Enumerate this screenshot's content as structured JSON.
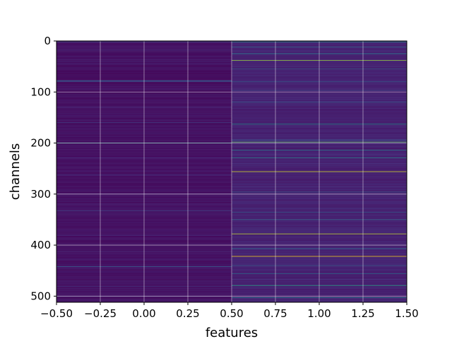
{
  "chart_data": {
    "type": "heatmap",
    "title": "",
    "xlabel": "features",
    "ylabel": "channels",
    "xlim": [
      -0.5,
      1.5
    ],
    "ylim": [
      512,
      0
    ],
    "n_rows": 512,
    "n_cols": 2,
    "x_ticks": [
      "−0.50",
      "−0.25",
      "0.00",
      "0.25",
      "0.50",
      "0.75",
      "1.00",
      "1.25",
      "1.50"
    ],
    "x_tick_values": [
      -0.5,
      -0.25,
      0.0,
      0.25,
      0.5,
      0.75,
      1.0,
      1.25,
      1.5
    ],
    "y_ticks": [
      "0",
      "100",
      "200",
      "300",
      "400",
      "500"
    ],
    "y_tick_values": [
      0,
      100,
      200,
      300,
      400,
      500
    ],
    "grid": true,
    "colormap": "viridis",
    "colorbar": false,
    "columns": [
      {
        "x": 0,
        "base_value": 0.05,
        "highlights": [
          {
            "row": 2,
            "value": 0.22
          },
          {
            "row": 18,
            "value": 0.15
          },
          {
            "row": 45,
            "value": 0.12
          },
          {
            "row": 78,
            "value": 0.32
          },
          {
            "row": 79,
            "value": 0.25
          },
          {
            "row": 130,
            "value": 0.14
          },
          {
            "row": 160,
            "value": 0.18
          },
          {
            "row": 200,
            "value": 0.55
          },
          {
            "row": 229,
            "value": 0.12
          },
          {
            "row": 262,
            "value": 0.14
          },
          {
            "row": 300,
            "value": 0.13
          },
          {
            "row": 333,
            "value": 0.22
          },
          {
            "row": 381,
            "value": 0.14
          },
          {
            "row": 412,
            "value": 0.12
          },
          {
            "row": 442,
            "value": 0.3
          },
          {
            "row": 481,
            "value": 0.16
          },
          {
            "row": 500,
            "value": 0.13
          }
        ]
      },
      {
        "x": 1,
        "base_value": 0.1,
        "highlights": [
          {
            "row": 2,
            "value": 0.5
          },
          {
            "row": 12,
            "value": 0.35
          },
          {
            "row": 25,
            "value": 0.45
          },
          {
            "row": 38,
            "value": 0.85
          },
          {
            "row": 55,
            "value": 0.3
          },
          {
            "row": 80,
            "value": 0.32
          },
          {
            "row": 97,
            "value": 0.25
          },
          {
            "row": 120,
            "value": 0.3
          },
          {
            "row": 163,
            "value": 0.5
          },
          {
            "row": 194,
            "value": 0.3
          },
          {
            "row": 198,
            "value": 0.75
          },
          {
            "row": 214,
            "value": 0.45
          },
          {
            "row": 229,
            "value": 0.45
          },
          {
            "row": 256,
            "value": 0.95
          },
          {
            "row": 296,
            "value": 0.3
          },
          {
            "row": 336,
            "value": 0.3
          },
          {
            "row": 350,
            "value": 0.35
          },
          {
            "row": 378,
            "value": 0.92
          },
          {
            "row": 407,
            "value": 0.4
          },
          {
            "row": 422,
            "value": 1.0
          },
          {
            "row": 440,
            "value": 0.3
          },
          {
            "row": 456,
            "value": 0.35
          },
          {
            "row": 479,
            "value": 0.6
          },
          {
            "row": 503,
            "value": 0.45
          }
        ]
      }
    ]
  }
}
